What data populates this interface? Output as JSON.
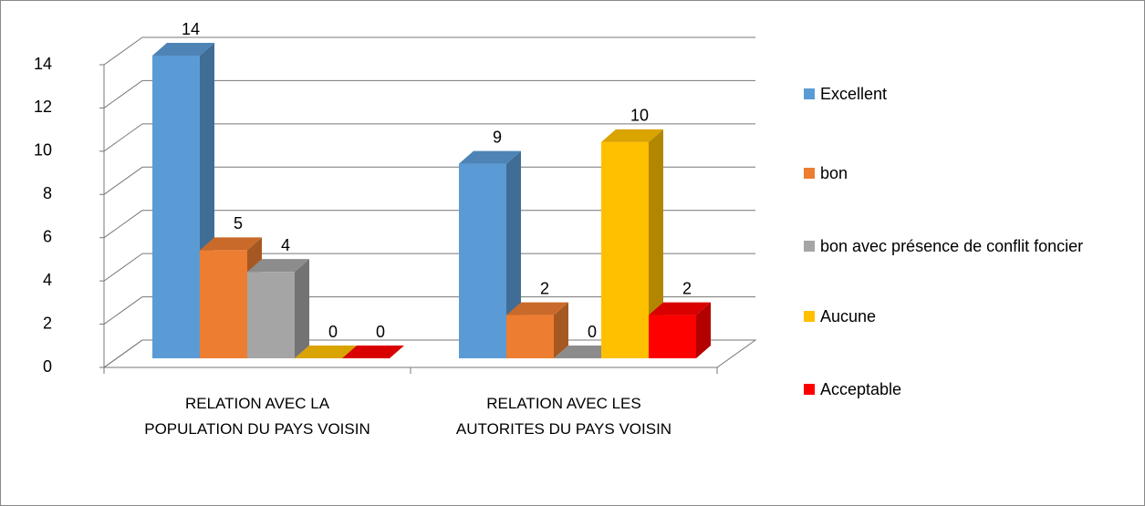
{
  "chart_data": {
    "type": "bar3d",
    "categories": [
      "RELATION AVEC LA POPULATION DU PAYS VOISIN",
      "RELATION AVEC LES AUTORITES DU PAYS VOISIN"
    ],
    "series": [
      {
        "name": "Excellent",
        "color": "#5b9bd5",
        "values": [
          14,
          9
        ]
      },
      {
        "name": "bon",
        "color": "#ed7d31",
        "values": [
          5,
          2
        ]
      },
      {
        "name": "bon avec présence de conflit foncier",
        "color": "#a5a5a5",
        "values": [
          4,
          0
        ]
      },
      {
        "name": "Aucune",
        "color": "#ffc000",
        "values": [
          0,
          10
        ]
      },
      {
        "name": "Acceptable",
        "color": "#ff0000",
        "values": [
          0,
          2
        ]
      }
    ],
    "ylim": [
      0,
      14
    ],
    "yticks": [
      0,
      2,
      4,
      6,
      8,
      10,
      12,
      14
    ],
    "grid": true,
    "legend": "right"
  }
}
